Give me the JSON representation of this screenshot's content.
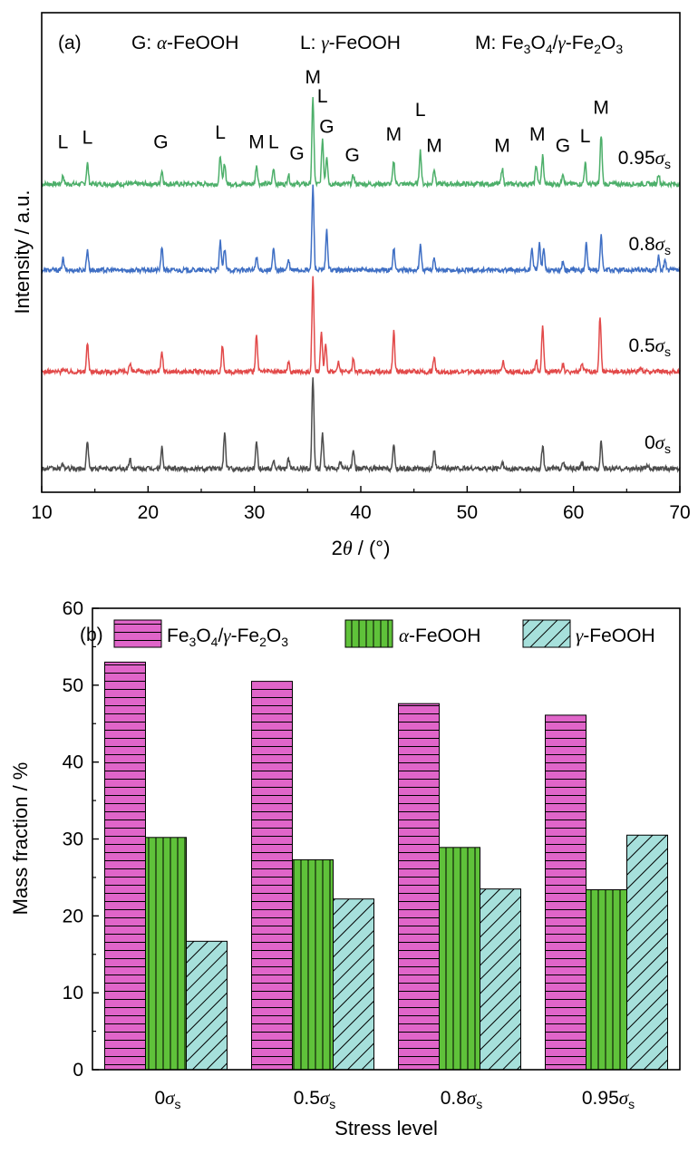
{
  "chart_data": [
    {
      "type": "line",
      "panel_label": "(a)",
      "legend_text": {
        "G": {
          "prefix": "G: ",
          "sym": "α",
          "rest": "-FeOOH"
        },
        "L": {
          "prefix": "L: ",
          "sym": "γ",
          "rest": "-FeOOH"
        },
        "M": {
          "prefix": "M: Fe",
          "sub1": "3",
          "mid1": "O",
          "sub2": "4",
          "mid2": "/",
          "sym": "γ",
          "mid3": "-Fe",
          "sub3": "2",
          "mid4": "O",
          "sub4": "3"
        }
      },
      "xlabel": {
        "pre": "2",
        "sym": "θ",
        "post": " / (°)"
      },
      "ylabel": "Intensity / a.u.",
      "xlim": [
        10,
        70
      ],
      "xticks": [
        "10",
        "20",
        "30",
        "40",
        "50",
        "60",
        "70"
      ],
      "series": [
        {
          "name": "0.95σs",
          "label_num": "0.95",
          "color": "#4daf6a",
          "baseline": 0.0,
          "peaks": [
            [
              12.0,
              0.09
            ],
            [
              14.3,
              0.22
            ],
            [
              21.3,
              0.14
            ],
            [
              26.8,
              0.3
            ],
            [
              27.2,
              0.22
            ],
            [
              30.2,
              0.2
            ],
            [
              31.8,
              0.16
            ],
            [
              33.2,
              0.1
            ],
            [
              35.5,
              0.9
            ],
            [
              36.4,
              0.48
            ],
            [
              36.8,
              0.3
            ],
            [
              39.3,
              0.09
            ],
            [
              43.1,
              0.24
            ],
            [
              45.6,
              0.35
            ],
            [
              46.9,
              0.17
            ],
            [
              53.3,
              0.17
            ],
            [
              56.5,
              0.2
            ],
            [
              57.1,
              0.3
            ],
            [
              59.0,
              0.12
            ],
            [
              61.1,
              0.22
            ],
            [
              62.6,
              0.52
            ],
            [
              68.0,
              0.11
            ]
          ]
        },
        {
          "name": "0.8σs",
          "label_num": "0.8",
          "color": "#3f6fc4",
          "baseline": 0.0,
          "peaks": [
            [
              12.0,
              0.12
            ],
            [
              14.3,
              0.22
            ],
            [
              21.3,
              0.23
            ],
            [
              26.8,
              0.3
            ],
            [
              27.2,
              0.22
            ],
            [
              30.2,
              0.14
            ],
            [
              31.8,
              0.22
            ],
            [
              33.2,
              0.1
            ],
            [
              35.5,
              0.88
            ],
            [
              36.8,
              0.42
            ],
            [
              43.1,
              0.24
            ],
            [
              45.6,
              0.26
            ],
            [
              46.9,
              0.14
            ],
            [
              56.1,
              0.22
            ],
            [
              56.8,
              0.3
            ],
            [
              57.2,
              0.22
            ],
            [
              59.0,
              0.09
            ],
            [
              61.2,
              0.3
            ],
            [
              62.6,
              0.36
            ],
            [
              68.0,
              0.14
            ],
            [
              68.6,
              0.1
            ]
          ]
        },
        {
          "name": "0.5σs",
          "label_num": "0.5",
          "color": "#e24a4a",
          "baseline": 0.0,
          "peaks": [
            [
              12.0,
              0.04
            ],
            [
              14.3,
              0.3
            ],
            [
              18.3,
              0.08
            ],
            [
              21.3,
              0.2
            ],
            [
              27.0,
              0.28
            ],
            [
              30.2,
              0.38
            ],
            [
              33.2,
              0.1
            ],
            [
              35.5,
              0.98
            ],
            [
              36.3,
              0.4
            ],
            [
              36.7,
              0.3
            ],
            [
              37.9,
              0.1
            ],
            [
              39.3,
              0.14
            ],
            [
              43.1,
              0.42
            ],
            [
              46.9,
              0.14
            ],
            [
              53.4,
              0.1
            ],
            [
              56.5,
              0.12
            ],
            [
              57.1,
              0.5
            ],
            [
              59.0,
              0.08
            ],
            [
              60.8,
              0.08
            ],
            [
              62.5,
              0.58
            ],
            [
              66.3,
              0.04
            ]
          ]
        },
        {
          "name": "0σs",
          "label_num": "0",
          "color": "#4d4d4d",
          "baseline": 0.0,
          "peaks": [
            [
              12.0,
              0.05
            ],
            [
              14.3,
              0.3
            ],
            [
              18.3,
              0.1
            ],
            [
              21.3,
              0.22
            ],
            [
              27.2,
              0.38
            ],
            [
              30.2,
              0.3
            ],
            [
              31.8,
              0.08
            ],
            [
              33.2,
              0.1
            ],
            [
              35.5,
              0.98
            ],
            [
              36.4,
              0.38
            ],
            [
              38.1,
              0.08
            ],
            [
              39.3,
              0.2
            ],
            [
              43.1,
              0.24
            ],
            [
              46.9,
              0.2
            ],
            [
              53.3,
              0.08
            ],
            [
              57.1,
              0.24
            ],
            [
              59.0,
              0.08
            ],
            [
              60.8,
              0.06
            ],
            [
              62.6,
              0.3
            ],
            [
              67.0,
              0.04
            ]
          ]
        }
      ],
      "peak_labels": [
        {
          "text": "L",
          "x": 12.0,
          "y": 0.3
        },
        {
          "text": "L",
          "x": 14.3,
          "y": 0.35
        },
        {
          "text": "G",
          "x": 21.2,
          "y": 0.3
        },
        {
          "text": "L",
          "x": 26.8,
          "y": 0.4
        },
        {
          "text": "M",
          "x": 30.2,
          "y": 0.3
        },
        {
          "text": "L",
          "x": 31.8,
          "y": 0.3
        },
        {
          "text": "G",
          "x": 34.0,
          "y": 0.18
        },
        {
          "text": "M",
          "x": 35.5,
          "y": 0.98
        },
        {
          "text": "L",
          "x": 36.4,
          "y": 0.78
        },
        {
          "text": "G",
          "x": 36.8,
          "y": 0.46
        },
        {
          "text": "G",
          "x": 39.2,
          "y": 0.16
        },
        {
          "text": "M",
          "x": 43.1,
          "y": 0.38
        },
        {
          "text": "L",
          "x": 45.6,
          "y": 0.64
        },
        {
          "text": "M",
          "x": 46.9,
          "y": 0.26
        },
        {
          "text": "M",
          "x": 53.3,
          "y": 0.26
        },
        {
          "text": "M",
          "x": 56.6,
          "y": 0.38
        },
        {
          "text": "G",
          "x": 59.0,
          "y": 0.26
        },
        {
          "text": "L",
          "x": 61.1,
          "y": 0.36
        },
        {
          "text": "M",
          "x": 62.6,
          "y": 0.66
        }
      ]
    },
    {
      "type": "bar",
      "panel_label": "(b)",
      "categories": [
        {
          "num": "0",
          "sub": "s"
        },
        {
          "num": "0.5",
          "sub": "s"
        },
        {
          "num": "0.8",
          "sub": "s"
        },
        {
          "num": "0.95",
          "sub": "s"
        }
      ],
      "category_symbol": "σ",
      "series": [
        {
          "name": "Fe3O4/γ-Fe2O3",
          "color": "#e065c9",
          "pattern": "horizontal",
          "values": [
            53.0,
            50.5,
            47.6,
            46.1
          ]
        },
        {
          "name": "α-FeOOH",
          "color": "#5fc23a",
          "pattern": "vertical",
          "values": [
            30.2,
            27.3,
            28.9,
            23.4
          ]
        },
        {
          "name": "γ-FeOOH",
          "color": "#a6e0db",
          "pattern": "diagonal",
          "values": [
            16.7,
            22.2,
            23.5,
            30.5
          ]
        }
      ],
      "legend_text": {
        "s1": {
          "a": "Fe",
          "b": "3",
          "c": "O",
          "d": "4",
          "e": "/",
          "f": "γ",
          "g": "-Fe",
          "h": "2",
          "i": "O",
          "j": "3"
        },
        "s2": {
          "sym": "α",
          "rest": "-FeOOH"
        },
        "s3": {
          "sym": "γ",
          "rest": "-FeOOH"
        }
      },
      "xlabel": "Stress level",
      "ylabel": "Mass fraction / %",
      "ylim": [
        0,
        60
      ],
      "yticks": [
        "0",
        "10",
        "20",
        "30",
        "40",
        "50",
        "60"
      ]
    }
  ]
}
